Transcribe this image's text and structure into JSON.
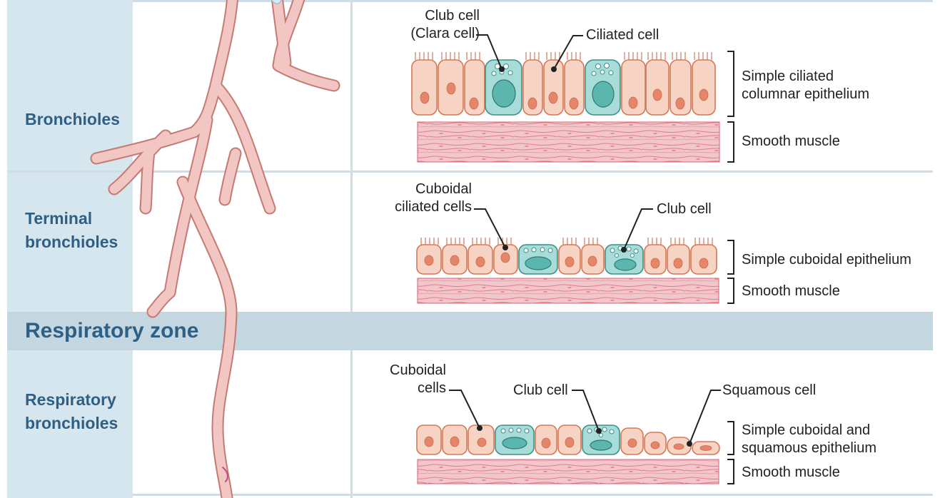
{
  "rows": {
    "bronchioles": {
      "title": "Bronchioles",
      "club_label": "Club cell\n(Clara cell)",
      "ciliated_label": "Ciliated cell",
      "epithelium_label": "Simple ciliated\ncolumnar epithelium",
      "muscle_label": "Smooth muscle"
    },
    "terminal": {
      "title": "Terminal\nbronchioles",
      "cuboidal_label": "Cuboidal\nciliated cells",
      "club_label": "Club cell",
      "epithelium_label": "Simple cuboidal epithelium",
      "muscle_label": "Smooth muscle"
    },
    "respiratory": {
      "title": "Respiratory\nbronchioles",
      "cuboidal_label": "Cuboidal\ncells",
      "club_label": "Club cell",
      "squamous_label": "Squamous cell",
      "epithelium_label": "Simple cuboidal and\nsquamous epithelium",
      "muscle_label": "Smooth muscle"
    }
  },
  "band": {
    "title": "Respiratory zone"
  },
  "colors": {
    "heading": "#2e5f84",
    "side_panel": "#d6e6ef",
    "band": "#c4d6df",
    "cell_fill": "#f7d3c3",
    "cell_stroke": "#d57856",
    "nucleus": "#e5866a",
    "club_fill": "#a7dcd8",
    "club_stroke": "#3d8f89",
    "club_nucleus": "#5bb6ae",
    "muscle": "#f3c6cc",
    "muscle_line": "#d96473",
    "airway": "#f2c6c3",
    "airway_stroke": "#c57a73"
  }
}
